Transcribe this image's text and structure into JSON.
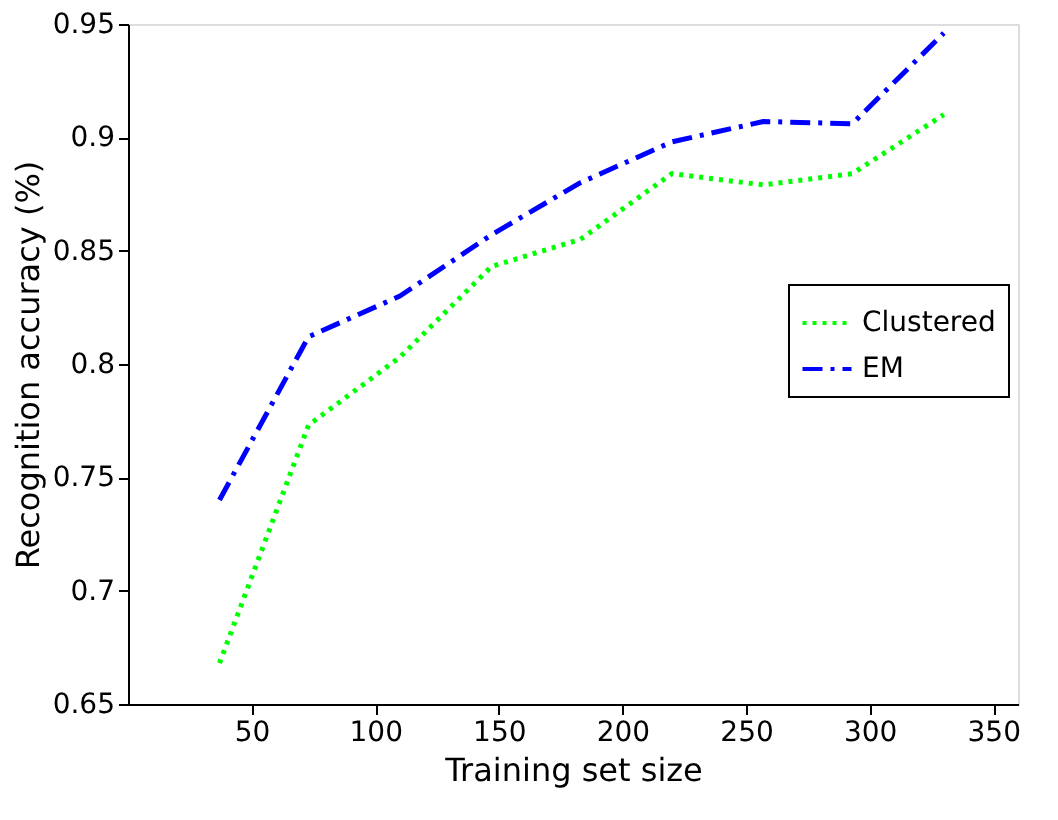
{
  "chart_data": {
    "type": "line",
    "xlabel": "Training set size",
    "ylabel": "Recognition accuracy (%)",
    "x": [
      37,
      73,
      110,
      147,
      183,
      220,
      257,
      293,
      330
    ],
    "series": [
      {
        "name": "Clustered",
        "color": "#00ff00",
        "line_style": "dotted",
        "values": [
          0.668,
          0.773,
          0.803,
          0.843,
          0.855,
          0.884,
          0.879,
          0.884,
          0.91
        ]
      },
      {
        "name": "EM",
        "color": "#0000ff",
        "line_style": "dashed",
        "values": [
          0.74,
          0.812,
          0.83,
          0.857,
          0.88,
          0.898,
          0.907,
          0.906,
          0.946
        ]
      }
    ],
    "xlim": [
      0,
      360
    ],
    "xticks": [
      50,
      100,
      150,
      200,
      250,
      300,
      350
    ],
    "ylim": [
      0.65,
      0.95
    ],
    "yticks": [
      0.65,
      0.7,
      0.75,
      0.8,
      0.85,
      0.9,
      0.95
    ],
    "grid": false,
    "legend": "right",
    "marker": "none"
  }
}
